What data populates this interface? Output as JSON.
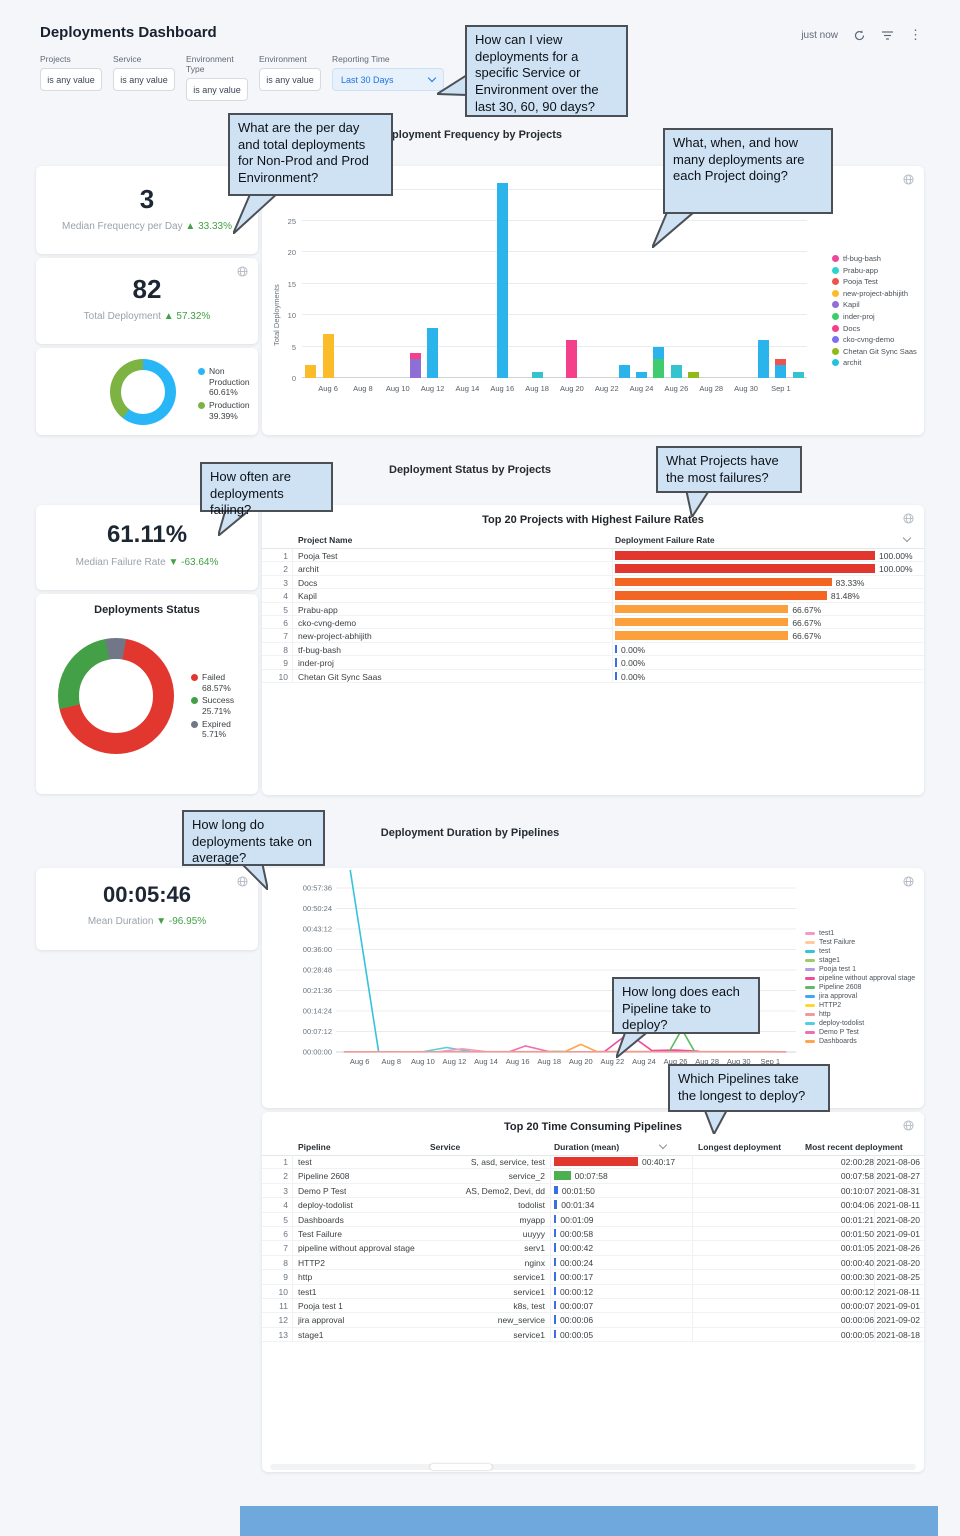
{
  "header": {
    "title": "Deployments Dashboard",
    "updated": "just now"
  },
  "icons": {
    "header": [
      "refresh",
      "filter-funnel",
      "kebab-menu"
    ],
    "panel_action": "globe",
    "sort": "chevron-down"
  },
  "filters": [
    {
      "label": "Projects",
      "value": "is any value"
    },
    {
      "label": "Service",
      "value": "is any value"
    },
    {
      "label": "Environment Type",
      "value": "is any value"
    },
    {
      "label": "Environment",
      "value": "is any value"
    },
    {
      "label": "Reporting Time",
      "value": "Last 30 Days"
    }
  ],
  "annotations": [
    {
      "text": "How can I view deployments for a specific Service or Environment over the last 30, 60, 90 days?"
    },
    {
      "text": "What are the per day and total deployments for Non-Prod and Prod Environment?"
    },
    {
      "text": "What, when, and how many deployments are each Project doing?"
    },
    {
      "text": "How often are deployments failing?"
    },
    {
      "text": "What Projects have the most failures?"
    },
    {
      "text": "How long do deployments take on average?"
    },
    {
      "text": "How long does each Pipeline take to deploy?"
    },
    {
      "text": "Which Pipelines take the longest to deploy?"
    }
  ],
  "section_titles": {
    "frequency": "Deployment Frequency by Projects",
    "status": "Deployment Status by Projects",
    "duration": "Deployment Duration by Pipelines"
  },
  "stats": [
    {
      "value": "3",
      "label": "Median Frequency per Day",
      "dir": "up",
      "delta": "33.33%"
    },
    {
      "value": "82",
      "label": "Total Deployment",
      "dir": "up",
      "delta": "57.32%"
    },
    {
      "value": "61.11%",
      "label": "Median Failure Rate",
      "dir": "down",
      "delta": "-63.64%"
    },
    {
      "value": "00:05:46",
      "label": "Mean Duration",
      "dir": "down",
      "delta": "-96.95%"
    }
  ],
  "chart_data": [
    {
      "id": "env_split",
      "type": "pie",
      "title": "",
      "labels": [
        "Non Production",
        "Production"
      ],
      "values": [
        60.61,
        39.39
      ],
      "colors": [
        "#29b6f6",
        "#7cb342"
      ],
      "legend_texts": [
        "Non Production 60.61%",
        "Production 39.39%"
      ],
      "start_deg": 0,
      "legend_position": "right"
    },
    {
      "id": "deploy_frequency",
      "type": "bar",
      "stacked": true,
      "title": "Deployment Frequency by Projects",
      "xlabel": "",
      "ylabel": "Total Deployments",
      "ylim": [
        0,
        30
      ],
      "yticks": [
        0,
        5,
        10,
        15,
        20,
        25,
        30
      ],
      "grid": true,
      "legend_position": "right",
      "xticks": [
        {
          "d": 1,
          "label": "Aug 6"
        },
        {
          "d": 3,
          "label": "Aug 8"
        },
        {
          "d": 5,
          "label": "Aug 10"
        },
        {
          "d": 7,
          "label": "Aug 12"
        },
        {
          "d": 9,
          "label": "Aug 14"
        },
        {
          "d": 11,
          "label": "Aug 16"
        },
        {
          "d": 13,
          "label": "Aug 18"
        },
        {
          "d": 15,
          "label": "Aug 20"
        },
        {
          "d": 17,
          "label": "Aug 22"
        },
        {
          "d": 19,
          "label": "Aug 24"
        },
        {
          "d": 21,
          "label": "Aug 26"
        },
        {
          "d": 23,
          "label": "Aug 28"
        },
        {
          "d": 25,
          "label": "Aug 30"
        },
        {
          "d": 27,
          "label": "Sep 1"
        }
      ],
      "x_domain_days": [
        "Aug 5",
        "Sep 2"
      ],
      "legend": [
        {
          "name": "tf-bug-bash",
          "color": "#ec4899"
        },
        {
          "name": "Prabu-app",
          "color": "#2dd4cf"
        },
        {
          "name": "Pooja Test",
          "color": "#ef5350"
        },
        {
          "name": "new-project-abhijith",
          "color": "#fbbc29"
        },
        {
          "name": "Kapil",
          "color": "#8d6fd6"
        },
        {
          "name": "inder-proj",
          "color": "#3ecc6e"
        },
        {
          "name": "Docs",
          "color": "#f43f8a"
        },
        {
          "name": "cko-cvng-demo",
          "color": "#7c6ff0"
        },
        {
          "name": "Chetan Git Sync Saas",
          "color": "#93b918"
        },
        {
          "name": "archit",
          "color": "#22c2dd"
        }
      ],
      "bars": [
        {
          "d": 0,
          "segments": [
            {
              "color": "#fbbc29",
              "v": 2
            }
          ]
        },
        {
          "d": 1,
          "segments": [
            {
              "color": "#fbbc29",
              "v": 7
            }
          ]
        },
        {
          "d": 6,
          "segments": [
            {
              "color": "#8d6fd6",
              "v": 3
            },
            {
              "color": "#f43f8a",
              "v": 1
            }
          ]
        },
        {
          "d": 7,
          "segments": [
            {
              "color": "#2bb3ec",
              "v": 8
            }
          ]
        },
        {
          "d": 11,
          "segments": [
            {
              "color": "#2bb3ec",
              "v": 31
            }
          ]
        },
        {
          "d": 13,
          "segments": [
            {
              "color": "#35c4cf",
              "v": 1
            }
          ]
        },
        {
          "d": 15,
          "segments": [
            {
              "color": "#f43f8a",
              "v": 6
            }
          ]
        },
        {
          "d": 18,
          "segments": [
            {
              "color": "#2bb3ec",
              "v": 2
            }
          ]
        },
        {
          "d": 19,
          "segments": [
            {
              "color": "#2bb3ec",
              "v": 1
            }
          ]
        },
        {
          "d": 20,
          "segments": [
            {
              "color": "#3ecc6e",
              "v": 3
            },
            {
              "color": "#2bb3ec",
              "v": 2
            }
          ]
        },
        {
          "d": 21,
          "segments": [
            {
              "color": "#35c4cf",
              "v": 2
            }
          ]
        },
        {
          "d": 22,
          "segments": [
            {
              "color": "#93b918",
              "v": 1
            }
          ]
        },
        {
          "d": 26,
          "segments": [
            {
              "color": "#2bb3ec",
              "v": 6
            }
          ]
        },
        {
          "d": 27,
          "segments": [
            {
              "color": "#2bb3ec",
              "v": 2
            },
            {
              "color": "#ef5350",
              "v": 1
            }
          ]
        },
        {
          "d": 28,
          "segments": [
            {
              "color": "#35c4cf",
              "v": 1
            }
          ]
        }
      ]
    },
    {
      "id": "deployment_status",
      "type": "pie",
      "title": "Deployments Status",
      "labels": [
        "Failed",
        "Success",
        "Expired"
      ],
      "values": [
        68.57,
        25.71,
        5.71
      ],
      "colors": [
        "#e2372e",
        "#43a047",
        "#717787"
      ],
      "legend_texts": [
        "Failed 68.57%",
        "Success 25.71%",
        "Expired 5.71%"
      ],
      "start_deg": 10,
      "legend_position": "right"
    },
    {
      "id": "duration_by_pipeline",
      "type": "line",
      "title": "Deployment Duration by Pipelines",
      "ymax_seconds": 3456,
      "ytick_interval_seconds": 432,
      "grid": true,
      "legend_position": "right",
      "yticks": [
        "00:00:00",
        "00:07:12",
        "00:14:24",
        "00:21:36",
        "00:28:48",
        "00:36:00",
        "00:43:12",
        "00:50:24",
        "00:57:36"
      ],
      "xticks": [
        {
          "d": 1,
          "label": "Aug 6"
        },
        {
          "d": 3,
          "label": "Aug 8"
        },
        {
          "d": 5,
          "label": "Aug 10"
        },
        {
          "d": 7,
          "label": "Aug 12"
        },
        {
          "d": 9,
          "label": "Aug 14"
        },
        {
          "d": 11,
          "label": "Aug 16"
        },
        {
          "d": 13,
          "label": "Aug 18"
        },
        {
          "d": 15,
          "label": "Aug 20"
        },
        {
          "d": 17,
          "label": "Aug 22"
        },
        {
          "d": 19,
          "label": "Aug 24"
        },
        {
          "d": 21,
          "label": "Aug 26"
        },
        {
          "d": 23,
          "label": "Aug 28"
        },
        {
          "d": 25,
          "label": "Aug 30"
        },
        {
          "d": 27,
          "label": "Sep 1"
        }
      ],
      "legend": [
        {
          "name": "test1",
          "color": "#f49ac1"
        },
        {
          "name": "Test Failure",
          "color": "#ffcc99"
        },
        {
          "name": "test",
          "color": "#35c3dc"
        },
        {
          "name": "stage1",
          "color": "#9ccc65"
        },
        {
          "name": "Pooja test 1",
          "color": "#b39ddb"
        },
        {
          "name": "pipeline without approval stage",
          "color": "#ed4d9b"
        },
        {
          "name": "Pipeline 2608",
          "color": "#5dbb63"
        },
        {
          "name": "jira approval",
          "color": "#42a5f5"
        },
        {
          "name": "HTTP2",
          "color": "#fdd835"
        },
        {
          "name": "http",
          "color": "#ef9a9a"
        },
        {
          "name": "deploy-todolist",
          "color": "#4dd0e1"
        },
        {
          "name": "Demo P Test",
          "color": "#f06eb4"
        },
        {
          "name": "Dashboards",
          "color": "#ffa54f"
        }
      ],
      "series": [
        {
          "name": "test",
          "color": "#35c3dc",
          "points": [
            [
              0.4,
              3850
            ],
            [
              2.2,
              5
            ]
          ]
        },
        {
          "name": "Dashboards",
          "color": "#ffa54f",
          "points": [
            [
              0,
              5
            ],
            [
              14,
              8
            ],
            [
              15,
              160
            ],
            [
              16,
              10
            ],
            [
              28,
              5
            ]
          ]
        },
        {
          "name": "deploy-todolist",
          "color": "#4dd0e1",
          "points": [
            [
              5,
              5
            ],
            [
              6.5,
              95
            ],
            [
              8,
              12
            ]
          ]
        },
        {
          "name": "test1",
          "color": "#f49ac1",
          "points": [
            [
              6,
              8
            ],
            [
              7.5,
              68
            ],
            [
              9,
              8
            ]
          ]
        },
        {
          "name": "Demo P Test",
          "color": "#f06eb4",
          "points": [
            [
              10.5,
              8
            ],
            [
              11.5,
              128
            ],
            [
              13,
              8
            ]
          ]
        },
        {
          "name": "pipeline without approval stage",
          "color": "#ed4d9b",
          "points": [
            [
              16.5,
              8
            ],
            [
              18,
              390
            ],
            [
              19.5,
              30
            ],
            [
              21,
              40
            ],
            [
              22.5,
              15
            ]
          ]
        },
        {
          "name": "Pipeline 2608",
          "color": "#5dbb63",
          "points": [
            [
              20.6,
              10
            ],
            [
              21.4,
              478
            ],
            [
              22.2,
              12
            ]
          ]
        },
        {
          "name": "stage1",
          "color": "#9ccc65",
          "points": [
            [
              12.5,
              5
            ],
            [
              13.5,
              15
            ],
            [
              14.5,
              5
            ]
          ]
        },
        {
          "name": "http",
          "color": "#ef9a9a",
          "points": [
            [
              0,
              3
            ],
            [
              28,
              3
            ]
          ]
        }
      ]
    }
  ],
  "failure_table": {
    "title": "Top 20 Projects with Highest Failure Rates",
    "columns": [
      "Project Name",
      "Deployment Failure Rate"
    ],
    "rows": [
      {
        "rank": 1,
        "name": "Pooja Test",
        "rate": "100.00%",
        "pct": 100,
        "color": "#e2372e"
      },
      {
        "rank": 2,
        "name": "archit",
        "rate": "100.00%",
        "pct": 100,
        "color": "#e2372e"
      },
      {
        "rank": 3,
        "name": "Docs",
        "rate": "83.33%",
        "pct": 83.33,
        "color": "#f26522"
      },
      {
        "rank": 4,
        "name": "Kapil",
        "rate": "81.48%",
        "pct": 81.48,
        "color": "#f26522"
      },
      {
        "rank": 5,
        "name": "Prabu-app",
        "rate": "66.67%",
        "pct": 66.67,
        "color": "#fba03c"
      },
      {
        "rank": 6,
        "name": "cko-cvng-demo",
        "rate": "66.67%",
        "pct": 66.67,
        "color": "#fba03c"
      },
      {
        "rank": 7,
        "name": "new-project-abhijith",
        "rate": "66.67%",
        "pct": 66.67,
        "color": "#fba03c"
      },
      {
        "rank": 8,
        "name": "tf-bug-bash",
        "rate": "0.00%",
        "pct": 0,
        "color": "#3b6fe0"
      },
      {
        "rank": 9,
        "name": "inder-proj",
        "rate": "0.00%",
        "pct": 0,
        "color": "#3b6fe0"
      },
      {
        "rank": 10,
        "name": "Chetan Git Sync Saas",
        "rate": "0.00%",
        "pct": 0,
        "color": "#3b6fe0"
      }
    ]
  },
  "pipelines_table": {
    "title": "Top 20 Time Consuming Pipelines",
    "columns": [
      "Pipeline",
      "Service",
      "Duration (mean)",
      "Longest deployment",
      "Most recent deployment"
    ],
    "rows": [
      {
        "rank": 1,
        "pipeline": "test",
        "service": "S, asd, service, test",
        "duration": "00:40:17",
        "duration_seconds": 2417,
        "bar_color": "#e2372e",
        "longest": "02:00:28",
        "recent": "2021-08-06"
      },
      {
        "rank": 2,
        "pipeline": "Pipeline 2608",
        "service": "service_2",
        "duration": "00:07:58",
        "duration_seconds": 478,
        "bar_color": "#4caf50",
        "longest": "00:07:58",
        "recent": "2021-08-27"
      },
      {
        "rank": 3,
        "pipeline": "Demo P Test",
        "service": "AS, Demo2, Devi, dd",
        "duration": "00:01:50",
        "duration_seconds": 110,
        "bar_color": "#3b6fe0",
        "longest": "00:10:07",
        "recent": "2021-08-31"
      },
      {
        "rank": 4,
        "pipeline": "deploy-todolist",
        "service": "todolist",
        "duration": "00:01:34",
        "duration_seconds": 94,
        "bar_color": "#3b6fe0",
        "longest": "00:04:06",
        "recent": "2021-08-11"
      },
      {
        "rank": 5,
        "pipeline": "Dashboards",
        "service": "myapp",
        "duration": "00:01:09",
        "duration_seconds": 69,
        "bar_color": "#3b6fe0",
        "longest": "00:01:21",
        "recent": "2021-08-20"
      },
      {
        "rank": 6,
        "pipeline": "Test Failure",
        "service": "uuyyy",
        "duration": "00:00:58",
        "duration_seconds": 58,
        "bar_color": "#3b6fe0",
        "longest": "00:01:50",
        "recent": "2021-09-01"
      },
      {
        "rank": 7,
        "pipeline": "pipeline without approval stage",
        "service": "serv1",
        "duration": "00:00:42",
        "duration_seconds": 42,
        "bar_color": "#3b6fe0",
        "longest": "00:01:05",
        "recent": "2021-08-26"
      },
      {
        "rank": 8,
        "pipeline": "HTTP2",
        "service": "nginx",
        "duration": "00:00:24",
        "duration_seconds": 24,
        "bar_color": "#3b6fe0",
        "longest": "00:00:40",
        "recent": "2021-08-20"
      },
      {
        "rank": 9,
        "pipeline": "http",
        "service": "service1",
        "duration": "00:00:17",
        "duration_seconds": 17,
        "bar_color": "#3b6fe0",
        "longest": "00:00:30",
        "recent": "2021-08-25"
      },
      {
        "rank": 10,
        "pipeline": "test1",
        "service": "service1",
        "duration": "00:00:12",
        "duration_seconds": 12,
        "bar_color": "#3b6fe0",
        "longest": "00:00:12",
        "recent": "2021-08-11"
      },
      {
        "rank": 11,
        "pipeline": "Pooja test 1",
        "service": "k8s, test",
        "duration": "00:00:07",
        "duration_seconds": 7,
        "bar_color": "#3b6fe0",
        "longest": "00:00:07",
        "recent": "2021-09-01"
      },
      {
        "rank": 12,
        "pipeline": "jira approval",
        "service": "new_service",
        "duration": "00:00:06",
        "duration_seconds": 6,
        "bar_color": "#3b6fe0",
        "longest": "00:00:06",
        "recent": "2021-09-02"
      },
      {
        "rank": 13,
        "pipeline": "stage1",
        "service": "service1",
        "duration": "00:00:05",
        "duration_seconds": 5,
        "bar_color": "#3b6fe0",
        "longest": "00:00:05",
        "recent": "2021-08-18"
      }
    ]
  },
  "misc": {
    "partial_bottom_bar_color": "#6fa8dc"
  }
}
